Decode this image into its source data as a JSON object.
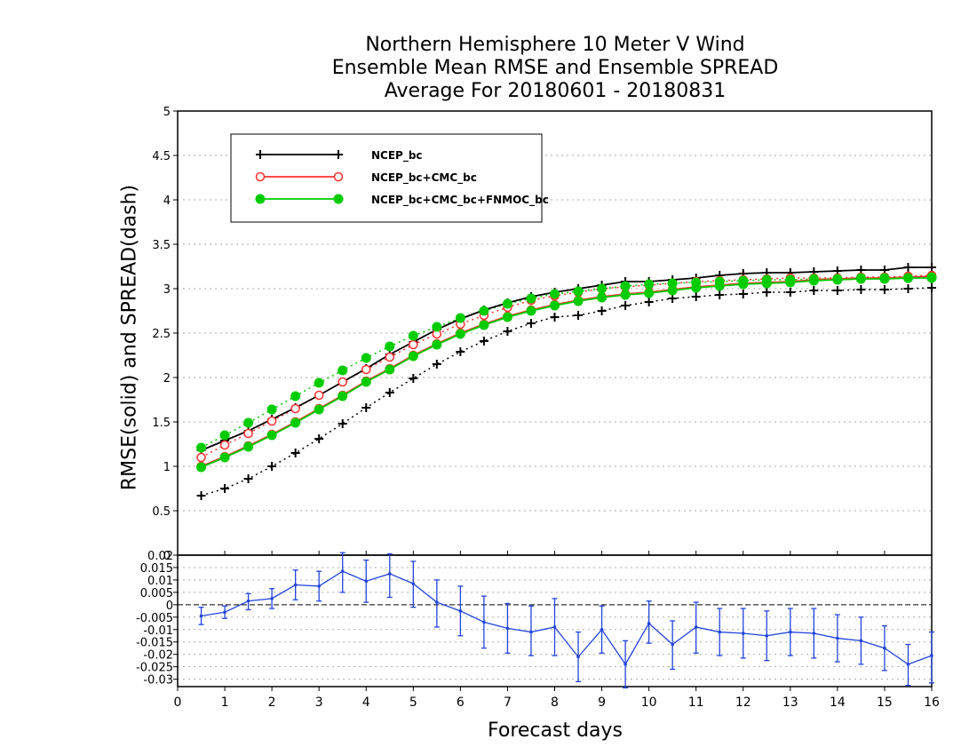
{
  "chart_data": {
    "type": "line",
    "title_lines": [
      "Northern Hemisphere 10 Meter V Wind",
      "Ensemble Mean RMSE and Ensemble SPREAD",
      "Average For 20180601 - 20180831"
    ],
    "xlabel": "Forecast days",
    "ylabel": "RMSE(solid) and SPREAD(dash)",
    "xlim": [
      0,
      16
    ],
    "x_ticks": [
      "0",
      "1",
      "2",
      "3",
      "4",
      "5",
      "6",
      "7",
      "8",
      "9",
      "10",
      "11",
      "12",
      "13",
      "14",
      "15",
      "16"
    ],
    "top_panel": {
      "ylim": [
        0,
        5
      ],
      "y_ticks": [
        "0",
        "0.5",
        "1",
        "1.5",
        "2",
        "2.5",
        "3",
        "3.5",
        "4",
        "4.5",
        "5"
      ],
      "grid": true,
      "legend_position": "top-left",
      "x": [
        0.5,
        1,
        1.5,
        2,
        2.5,
        3,
        3.5,
        4,
        4.5,
        5,
        5.5,
        6,
        6.5,
        7,
        7.5,
        8,
        8.5,
        9,
        9.5,
        10,
        10.5,
        11,
        11.5,
        12,
        12.5,
        13,
        13.5,
        14,
        14.5,
        15,
        15.5,
        16
      ],
      "series": [
        {
          "name": "NCEP_bc",
          "color": "#000000",
          "marker": "plus",
          "rmse": [
            1.18,
            1.29,
            1.4,
            1.53,
            1.66,
            1.8,
            1.95,
            2.1,
            2.26,
            2.4,
            2.54,
            2.66,
            2.76,
            2.84,
            2.91,
            2.96,
            3.0,
            3.04,
            3.08,
            3.08,
            3.1,
            3.12,
            3.15,
            3.17,
            3.18,
            3.18,
            3.19,
            3.2,
            3.21,
            3.21,
            3.24,
            3.24
          ],
          "spread": [
            0.67,
            0.75,
            0.86,
            1.0,
            1.15,
            1.31,
            1.48,
            1.66,
            1.83,
            1.99,
            2.15,
            2.29,
            2.41,
            2.52,
            2.61,
            2.68,
            2.7,
            2.75,
            2.81,
            2.85,
            2.89,
            2.91,
            2.93,
            2.94,
            2.96,
            2.96,
            2.98,
            2.98,
            2.99,
            2.99,
            3.0,
            3.01
          ]
        },
        {
          "name": "NCEP_bc+CMC_bc",
          "color": "#ff3030",
          "marker": "open-circle",
          "rmse": [
            1.0,
            1.11,
            1.23,
            1.36,
            1.5,
            1.65,
            1.8,
            1.96,
            2.1,
            2.25,
            2.38,
            2.5,
            2.6,
            2.69,
            2.76,
            2.82,
            2.87,
            2.91,
            2.94,
            2.96,
            2.99,
            3.02,
            3.04,
            3.06,
            3.07,
            3.08,
            3.1,
            3.11,
            3.12,
            3.12,
            3.13,
            3.14
          ],
          "spread": [
            1.1,
            1.24,
            1.37,
            1.51,
            1.65,
            1.8,
            1.95,
            2.09,
            2.23,
            2.37,
            2.49,
            2.6,
            2.7,
            2.79,
            2.87,
            2.92,
            2.96,
            3.0,
            3.02,
            3.04,
            3.06,
            3.08,
            3.09,
            3.1,
            3.11,
            3.12,
            3.12,
            3.12,
            3.13,
            3.13,
            3.14,
            3.15
          ]
        },
        {
          "name": "NCEP_bc+CMC_bc+FNMOC_bc",
          "color": "#00cc00",
          "marker": "filled-circle",
          "rmse": [
            0.99,
            1.1,
            1.22,
            1.35,
            1.49,
            1.64,
            1.79,
            1.95,
            2.09,
            2.24,
            2.37,
            2.49,
            2.59,
            2.68,
            2.75,
            2.81,
            2.86,
            2.9,
            2.93,
            2.95,
            2.98,
            3.01,
            3.03,
            3.05,
            3.06,
            3.07,
            3.09,
            3.1,
            3.11,
            3.11,
            3.12,
            3.12
          ],
          "spread": [
            1.21,
            1.35,
            1.49,
            1.64,
            1.79,
            1.94,
            2.08,
            2.22,
            2.35,
            2.47,
            2.57,
            2.67,
            2.75,
            2.83,
            2.89,
            2.94,
            2.97,
            3.0,
            3.03,
            3.05,
            3.06,
            3.07,
            3.08,
            3.09,
            3.1,
            3.1,
            3.11,
            3.11,
            3.12,
            3.12,
            3.12,
            3.13
          ]
        }
      ]
    },
    "bottom_panel": {
      "ylim": [
        -0.033,
        0.02
      ],
      "y_ticks": [
        "0.02",
        "0.015",
        "0.01",
        "0.005",
        "0",
        "-0.005",
        "-0.01",
        "-0.015",
        "-0.02",
        "-0.025",
        "-0.03"
      ],
      "grid": true,
      "zero_line": true,
      "color": "#2244dd",
      "x": [
        0.5,
        1,
        1.5,
        2,
        2.5,
        3,
        3.5,
        4,
        4.5,
        5,
        5.5,
        6,
        6.5,
        7,
        7.5,
        8,
        8.5,
        9,
        9.5,
        10,
        10.5,
        11,
        11.5,
        12,
        12.5,
        13,
        13.5,
        14,
        14.5,
        15,
        15.5,
        16
      ],
      "values": [
        -0.0045,
        -0.003,
        0.0015,
        0.0025,
        0.008,
        0.0075,
        0.0135,
        0.0095,
        0.0125,
        0.0085,
        0.001,
        -0.0025,
        -0.007,
        -0.0095,
        -0.011,
        -0.009,
        -0.021,
        -0.01,
        -0.024,
        -0.0075,
        -0.016,
        -0.009,
        -0.011,
        -0.0115,
        -0.0125,
        -0.011,
        -0.0115,
        -0.0135,
        -0.0145,
        -0.0175,
        -0.024,
        -0.0205
      ],
      "error_low": [
        -0.008,
        -0.0055,
        -0.002,
        -0.0015,
        0.002,
        0.0015,
        0.005,
        0.001,
        0.003,
        -0.001,
        -0.009,
        -0.0125,
        -0.0175,
        -0.0195,
        -0.0205,
        -0.0205,
        -0.031,
        -0.0195,
        -0.0335,
        -0.0155,
        -0.026,
        -0.0195,
        -0.0205,
        -0.0215,
        -0.0225,
        -0.0205,
        -0.0215,
        -0.023,
        -0.024,
        -0.0265,
        -0.0325,
        -0.0315
      ],
      "error_high": [
        -0.001,
        -0.0005,
        0.0045,
        0.0065,
        0.014,
        0.0135,
        0.021,
        0.018,
        0.0205,
        0.0175,
        0.01,
        0.0075,
        0.0035,
        0.0005,
        -0.0005,
        0.0025,
        -0.011,
        -0.0005,
        -0.0145,
        0.0015,
        -0.0065,
        0.001,
        -0.0015,
        -0.0015,
        -0.0025,
        -0.0015,
        -0.0015,
        -0.004,
        -0.005,
        -0.0085,
        -0.016,
        -0.011
      ]
    }
  }
}
